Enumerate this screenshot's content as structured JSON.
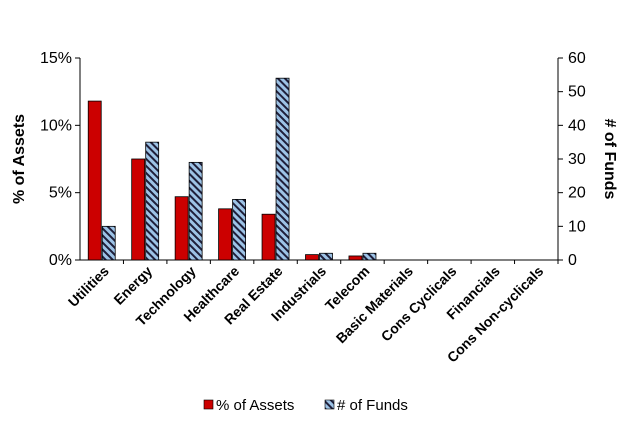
{
  "chart_data": {
    "type": "bar",
    "categories": [
      "Utilities",
      "Energy",
      "Technology",
      "Healthcare",
      "Real Estate",
      "Industrials",
      "Telecom",
      "Basic Materials",
      "Cons Cyclicals",
      "Financials",
      "Cons Non-cyclicals"
    ],
    "series": [
      {
        "name": "% of Assets",
        "axis": "left",
        "color": "#cc0000",
        "values": [
          11.8,
          7.5,
          4.7,
          3.8,
          3.4,
          0.4,
          0.3,
          0,
          0,
          0,
          0
        ]
      },
      {
        "name": "# of Funds",
        "axis": "right",
        "color": "#9dc3e6",
        "pattern": "diagonal-stripes",
        "values": [
          10,
          35,
          29,
          18,
          54,
          2,
          2,
          0,
          0,
          0,
          0
        ]
      }
    ],
    "ylabel": "% of Assets",
    "y2label": "# of Funds",
    "ylim": [
      0,
      15
    ],
    "y2lim": [
      0,
      60
    ],
    "yticks": [
      "0%",
      "5%",
      "10%",
      "15%"
    ],
    "y2ticks": [
      "0",
      "10",
      "20",
      "30",
      "40",
      "50",
      "60"
    ],
    "legend_position": "bottom",
    "grid": false
  }
}
